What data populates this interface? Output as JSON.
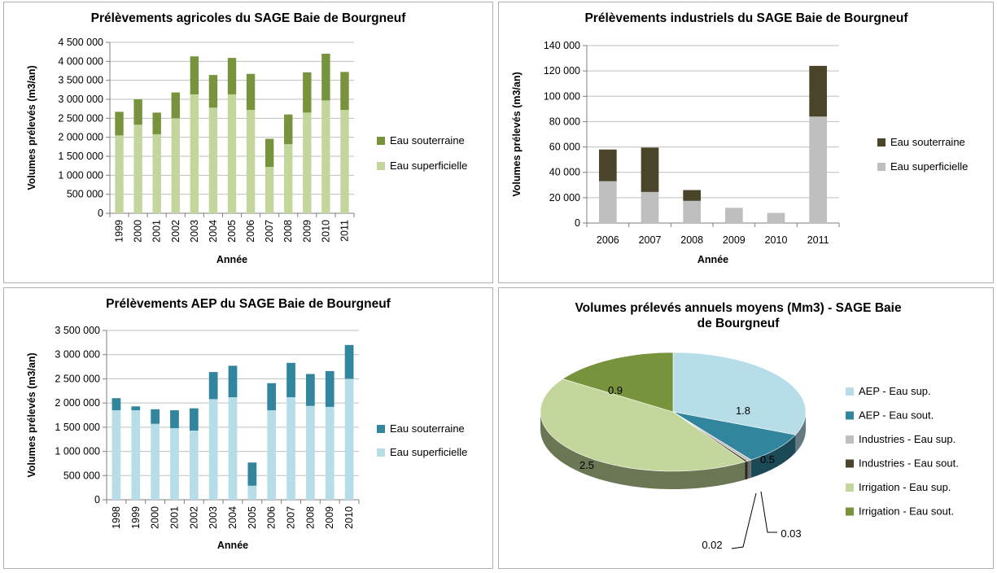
{
  "chart_data": [
    {
      "id": "agri",
      "type": "bar",
      "stacked": true,
      "title": "Prélèvements agricoles du SAGE Baie de Bourgneuf",
      "xlabel": "Année",
      "ylabel": "Volumes prélevés (m3/an)",
      "ylim": [
        0,
        4500000
      ],
      "yticks": [
        "0",
        "500 000",
        "1 000 000",
        "1 500 000",
        "2 000 000",
        "2 500 000",
        "3 000 000",
        "3 500 000",
        "4 000 000",
        "4 500 000"
      ],
      "grid": true,
      "legend_position": "right",
      "categories": [
        "1999",
        "2000",
        "2001",
        "2002",
        "2003",
        "2004",
        "2005",
        "2006",
        "2007",
        "2008",
        "2009",
        "2010",
        "2011"
      ],
      "series": [
        {
          "name": "Eau superficielle",
          "color": "#c3d69b",
          "values": [
            2050000,
            2330000,
            2080000,
            2500000,
            3130000,
            2780000,
            3130000,
            2720000,
            1220000,
            1820000,
            2650000,
            2970000,
            2720000
          ]
        },
        {
          "name": "Eau souterraine",
          "color": "#77933c",
          "values": [
            620000,
            670000,
            570000,
            680000,
            1000000,
            860000,
            960000,
            950000,
            740000,
            780000,
            1060000,
            1230000,
            1000000
          ]
        }
      ]
    },
    {
      "id": "indus",
      "type": "bar",
      "stacked": true,
      "title": "Prélèvements industriels du SAGE Baie de Bourgneuf",
      "xlabel": "Année",
      "ylabel": "Volumes prélevés (m3/an)",
      "ylim": [
        0,
        140000
      ],
      "yticks": [
        "0",
        "20 000",
        "40 000",
        "60 000",
        "80 000",
        "100 000",
        "120 000",
        "140 000"
      ],
      "grid": true,
      "legend_position": "right",
      "categories": [
        "2006",
        "2007",
        "2008",
        "2009",
        "2010",
        "2011"
      ],
      "series": [
        {
          "name": "Eau superficielle",
          "color": "#bfbfbf",
          "values": [
            33000,
            24500,
            17500,
            12000,
            8000,
            84000
          ]
        },
        {
          "name": "Eau souterraine",
          "color": "#4a452a",
          "values": [
            25000,
            35000,
            8500,
            0,
            0,
            40000
          ]
        }
      ]
    },
    {
      "id": "aep",
      "type": "bar",
      "stacked": true,
      "title": "Prélèvements AEP du SAGE Baie de Bourgneuf",
      "xlabel": "Année",
      "ylabel": "Volumes prélevés (m3/an)",
      "ylim": [
        0,
        3500000
      ],
      "yticks": [
        "0",
        "500 000",
        "1 000 000",
        "1 500 000",
        "2 000 000",
        "2 500 000",
        "3 000 000",
        "3 500 000"
      ],
      "grid": true,
      "legend_position": "right",
      "categories": [
        "1998",
        "1999",
        "2000",
        "2001",
        "2002",
        "2003",
        "2004",
        "2005",
        "2006",
        "2007",
        "2008",
        "2009",
        "2010"
      ],
      "series": [
        {
          "name": "Eau superficielle",
          "color": "#b7dee8",
          "values": [
            1850000,
            1850000,
            1570000,
            1480000,
            1430000,
            2080000,
            2120000,
            290000,
            1850000,
            2120000,
            1940000,
            1920000,
            2500000
          ]
        },
        {
          "name": "Eau souterraine",
          "color": "#31859c",
          "values": [
            250000,
            80000,
            300000,
            370000,
            460000,
            560000,
            650000,
            480000,
            560000,
            710000,
            660000,
            740000,
            700000
          ]
        }
      ]
    },
    {
      "id": "pie",
      "type": "pie",
      "title_lines": [
        "Volumes prélevés annuels moyens (Mm3) - SAGE Baie",
        "de Bourgneuf"
      ],
      "legend_position": "right",
      "labels": [
        "AEP - Eau sup.",
        "AEP - Eau sout.",
        "Industries - Eau sup.",
        "Industries - Eau sout.",
        "Irrigation - Eau sup.",
        "Irrigation - Eau sout."
      ],
      "values": [
        1.8,
        0.5,
        0.03,
        0.02,
        2.5,
        0.9
      ],
      "value_labels": [
        "1.8",
        "0.5",
        "0.03",
        "0.02",
        "2.5",
        "0.9"
      ],
      "colors": [
        "#b7dee8",
        "#31859c",
        "#bfbfbf",
        "#4a452a",
        "#c3d69b",
        "#77933c"
      ]
    }
  ]
}
